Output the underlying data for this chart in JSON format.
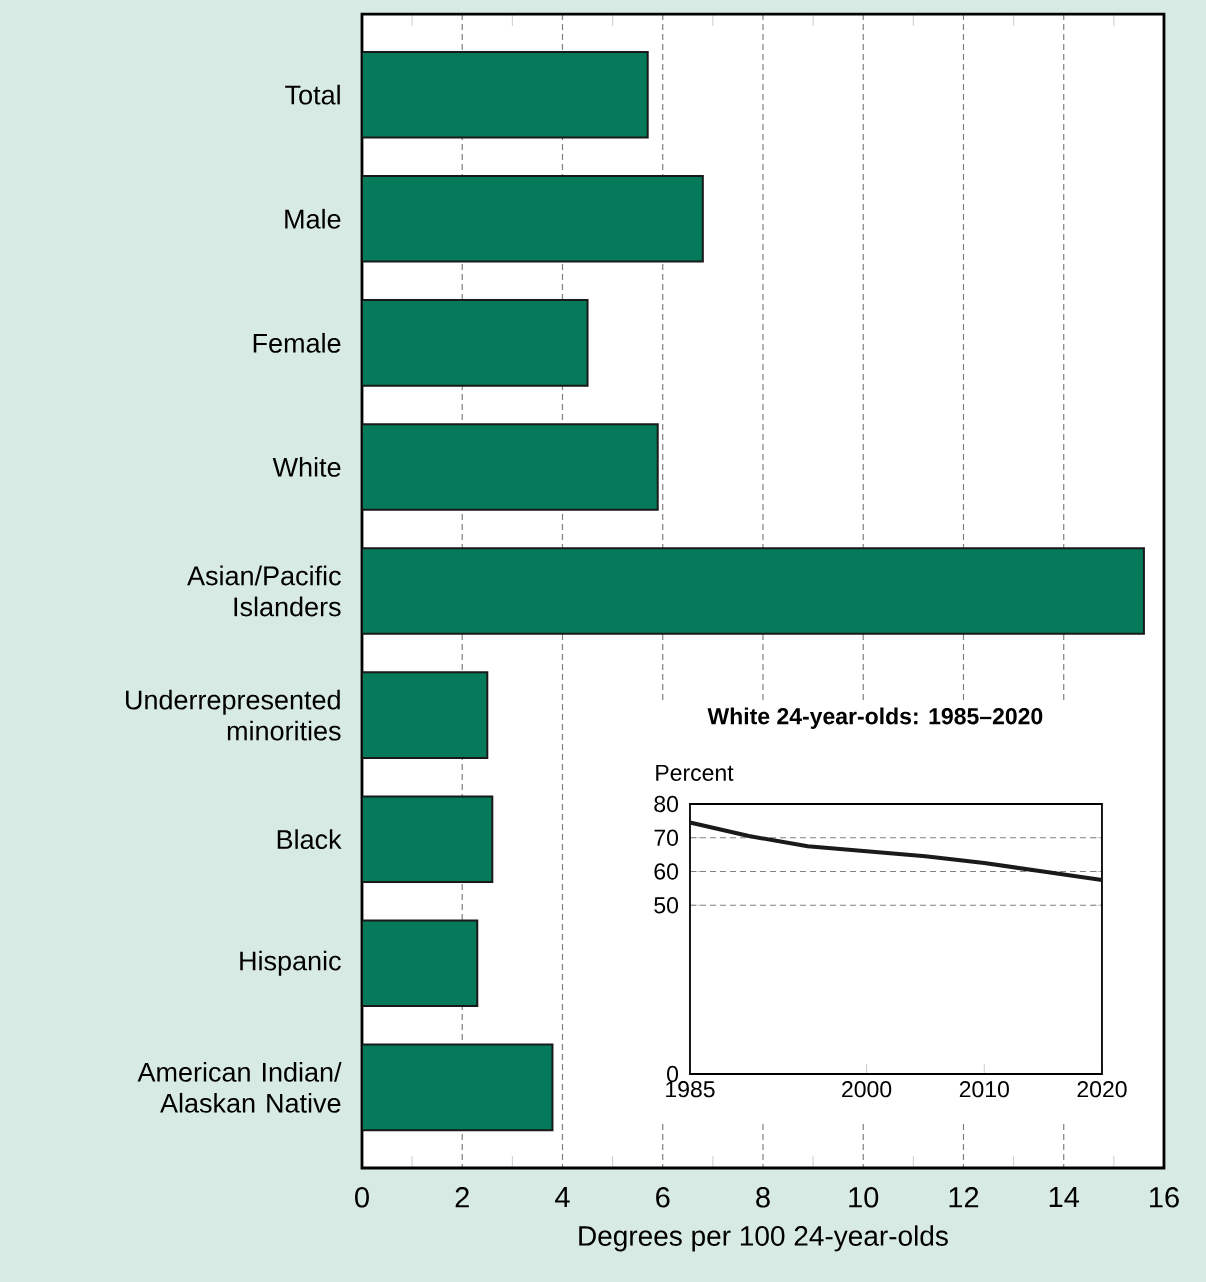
{
  "chart_data": [
    {
      "type": "bar",
      "orientation": "horizontal",
      "categories": [
        "Total",
        "Male",
        "Female",
        "White",
        "Asian/Pacific Islanders",
        "Underrepresented minorities",
        "Black",
        "Hispanic",
        "American Indian/Alaskan Native"
      ],
      "values": [
        5.7,
        6.8,
        4.5,
        5.9,
        15.6,
        2.5,
        2.6,
        2.3,
        3.8
      ],
      "color": "#047a5a",
      "xlim": [
        0,
        16
      ],
      "xticks": [
        0,
        2,
        4,
        6,
        8,
        10,
        12,
        14,
        16
      ],
      "xlabel": "Degrees per 100 24-year-olds",
      "grid": "x"
    },
    {
      "type": "line",
      "title": "White 24-year-olds: 1985–2020",
      "ylabel": "Percent",
      "x": [
        1985,
        1990,
        1995,
        2000,
        2005,
        2010,
        2015,
        2020
      ],
      "values": [
        74.5,
        70.5,
        67.5,
        66,
        64.5,
        62.5,
        60,
        57.5
      ],
      "color": "#1a1a1a",
      "xlim": [
        1985,
        2020
      ],
      "xticks": [
        1985,
        2000,
        2010,
        2020
      ],
      "ylim": [
        0,
        80
      ],
      "yticks": [
        0,
        50,
        60,
        70,
        80
      ],
      "grid": "y"
    }
  ]
}
